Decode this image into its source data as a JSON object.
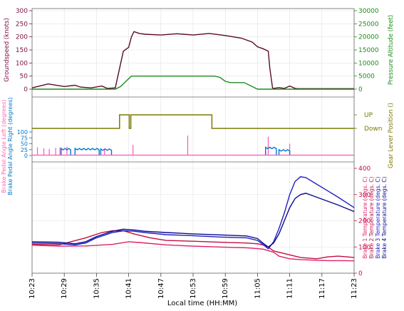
{
  "chart_data": [
    {
      "type": "line",
      "panel": "speed-altitude",
      "title": "",
      "xlabel": "",
      "ylabel_left": "Groundspeed (knots)",
      "ylabel_right": "Pressure Altitude (feet)",
      "ylim_left": [
        0,
        300
      ],
      "ylim_right": [
        0,
        30000
      ],
      "yticks_left": [
        "300",
        "250",
        "200",
        "150",
        "100",
        "50",
        "0"
      ],
      "yticks_right": [
        "30000",
        "25000",
        "20000",
        "15000",
        "10000",
        "5000",
        "0"
      ],
      "colors": {
        "left": "#7a1040",
        "right": "#1e8a1e"
      },
      "series": [
        {
          "key": "groundspeed",
          "axis": "left",
          "color": "#5a0a28",
          "x": [
            0,
            3,
            6,
            8,
            9,
            11,
            13,
            14,
            15.5,
            17,
            18,
            18.5,
            19,
            20,
            21,
            24,
            27,
            30,
            33,
            36,
            39,
            41,
            42,
            43,
            44,
            44.3,
            44.8,
            45,
            46,
            47,
            48,
            49,
            49.5,
            50,
            51,
            52,
            53,
            54,
            55,
            56,
            57,
            58,
            59,
            60
          ],
          "y": [
            5,
            20,
            10,
            15,
            8,
            5,
            12,
            3,
            5,
            145,
            160,
            200,
            220,
            213,
            210,
            207,
            212,
            207,
            213,
            205,
            195,
            180,
            162,
            155,
            145,
            80,
            5,
            3,
            6,
            3,
            12,
            3,
            2,
            2,
            2,
            2,
            2,
            2,
            2,
            2,
            2,
            2,
            2,
            2
          ]
        },
        {
          "key": "pressure-altitude",
          "axis": "right",
          "color": "#1e8a1e",
          "x": [
            0,
            15.5,
            16.5,
            17.5,
            18.5,
            20,
            22,
            24,
            26,
            28,
            30,
            32,
            34,
            35,
            36,
            37,
            38,
            39.5,
            41,
            42,
            43,
            44,
            44.5,
            60
          ],
          "y": [
            0,
            0,
            1000,
            3000,
            5000,
            5000,
            5000,
            5000,
            5000,
            5000,
            5000,
            5000,
            5000,
            4500,
            3000,
            2500,
            2500,
            2500,
            1000,
            0,
            0,
            0,
            0,
            0
          ]
        }
      ]
    },
    {
      "type": "line",
      "panel": "gear-lever",
      "ylabel_right": "Gear Lever Position ()",
      "ytick_labels": [
        "UP",
        "Down"
      ],
      "color": "#7a7a00",
      "series": [
        {
          "key": "gear-lever",
          "x": [
            0,
            16.3,
            16.3,
            18.1,
            18.1,
            18.4,
            18.4,
            33.5,
            33.5,
            60
          ],
          "y": [
            0,
            0,
            1,
            1,
            0,
            0,
            1,
            1,
            0,
            0
          ]
        }
      ]
    },
    {
      "type": "line",
      "panel": "brake-pedal",
      "ylabel_left_1": "Brake Pedal Angle Left (degrees)",
      "ylabel_left_2": "Brake Pedal Angle Right (degrees)",
      "ylim": [
        0,
        100
      ],
      "yticks": [
        "100",
        "75",
        "50",
        "25",
        "0"
      ],
      "colors": {
        "left": "#ff69b4",
        "right": "#0077cc"
      },
      "series": [
        {
          "key": "brake-pedal-left",
          "color": "#ff55bb",
          "spikes": [
            [
              1,
              35
            ],
            [
              2.2,
              30
            ],
            [
              3.2,
              28
            ],
            [
              4.4,
              32
            ],
            [
              5.2,
              35
            ],
            [
              6.5,
              38
            ],
            [
              13.5,
              30
            ],
            [
              18.8,
              45
            ],
            [
              29,
              85
            ],
            [
              44,
              80
            ],
            [
              48,
              50
            ]
          ]
        },
        {
          "key": "brake-pedal-right",
          "color": "#0077cc",
          "segments": [
            [
              5.4,
              7.2,
              30
            ],
            [
              8,
              12.5,
              30
            ],
            [
              12.8,
              14.8,
              28
            ],
            [
              43.5,
              45.5,
              35
            ],
            [
              46,
              48,
              25
            ]
          ]
        }
      ]
    },
    {
      "type": "line",
      "panel": "brake-temperature",
      "ylabel_right": [
        "Brake 1 Temperature (degs. C)",
        "Brake 2 Temperature (degs. C)",
        "Brake 3 Temperature (degs. C)",
        "Brake 4 Temperature (degs. C)"
      ],
      "ylim": [
        0,
        400
      ],
      "yticks": [
        "400",
        "300",
        "200",
        "100",
        "0"
      ],
      "series": [
        {
          "key": "brake-1",
          "color": "#e0206a",
          "x": [
            0,
            5,
            10,
            15,
            18,
            20,
            25,
            30,
            35,
            40,
            43,
            45,
            46,
            48,
            50,
            52,
            55,
            58,
            60
          ],
          "y": [
            107,
            103,
            104,
            110,
            120,
            117,
            108,
            103,
            100,
            97,
            92,
            80,
            65,
            55,
            52,
            50,
            48,
            48,
            47
          ]
        },
        {
          "key": "brake-2",
          "color": "#c01040",
          "x": [
            0,
            5,
            10,
            13,
            15,
            17,
            19,
            22,
            25,
            30,
            35,
            40,
            42,
            43,
            44,
            45,
            48,
            50,
            53,
            55,
            57,
            60
          ],
          "y": [
            110,
            108,
            135,
            155,
            162,
            162,
            150,
            135,
            125,
            122,
            118,
            115,
            112,
            108,
            100,
            85,
            70,
            60,
            55,
            62,
            65,
            60
          ]
        },
        {
          "key": "brake-3",
          "color": "#2020c0",
          "x": [
            0,
            5,
            8,
            10,
            12,
            15,
            17,
            19,
            21,
            25,
            30,
            35,
            40,
            42,
            43,
            44,
            45,
            46,
            47,
            48,
            49,
            50,
            51,
            53,
            55,
            57,
            60
          ],
          "y": [
            115,
            113,
            108,
            115,
            135,
            155,
            162,
            160,
            155,
            147,
            143,
            138,
            135,
            125,
            110,
            93,
            120,
            170,
            230,
            300,
            350,
            368,
            365,
            340,
            315,
            290,
            250
          ]
        },
        {
          "key": "brake-4",
          "color": "#0a0a90",
          "x": [
            0,
            5,
            8,
            10,
            12,
            15,
            17,
            19,
            21,
            25,
            30,
            35,
            40,
            42,
            43,
            44,
            45,
            46,
            47,
            48,
            49,
            50,
            51,
            53,
            55,
            57,
            60
          ],
          "y": [
            120,
            118,
            112,
            120,
            140,
            160,
            168,
            165,
            160,
            155,
            150,
            146,
            142,
            132,
            115,
            100,
            115,
            150,
            200,
            250,
            285,
            300,
            305,
            290,
            275,
            260,
            235
          ]
        }
      ]
    }
  ],
  "x_axis": {
    "label": "Local time (HH:MM)",
    "range_minutes": [
      0,
      60
    ],
    "tick_minutes": [
      0,
      6,
      12,
      18,
      24,
      30,
      36,
      42,
      48,
      54,
      60
    ],
    "tick_labels": [
      "10:23",
      "10:29",
      "10:35",
      "10:41",
      "10:47",
      "10:53",
      "10:59",
      "11:05",
      "11:11",
      "11:17",
      "11:23"
    ],
    "grid": true
  }
}
